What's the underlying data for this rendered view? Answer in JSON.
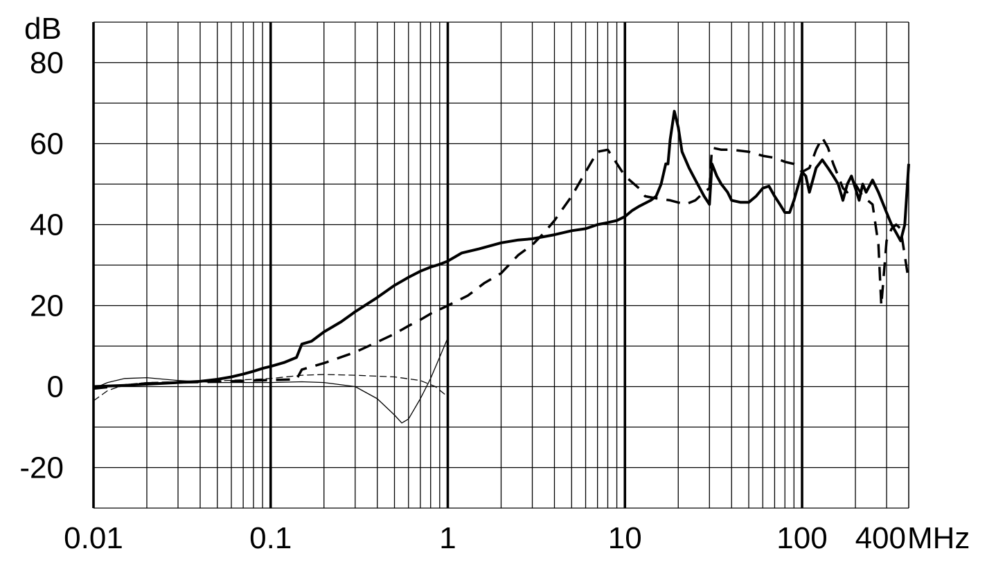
{
  "chart_data": {
    "type": "line",
    "title": "",
    "xscale": "log",
    "xlim": [
      0.01,
      400
    ],
    "ylim": [
      -30,
      90
    ],
    "grid": true,
    "xlabel_unit": "MHz",
    "ylabel_unit": "dB",
    "x_ticks": [
      {
        "value": 0.01,
        "label": "0.01"
      },
      {
        "value": 0.1,
        "label": "0.1"
      },
      {
        "value": 1,
        "label": "1"
      },
      {
        "value": 10,
        "label": "10"
      },
      {
        "value": 100,
        "label": "100"
      },
      {
        "value": 400,
        "label": "400"
      }
    ],
    "y_ticks": [
      {
        "value": 80,
        "label": "80"
      },
      {
        "value": 60,
        "label": "60"
      },
      {
        "value": 40,
        "label": "40"
      },
      {
        "value": 20,
        "label": "20"
      },
      {
        "value": 0,
        "label": "0"
      },
      {
        "value": -20,
        "label": "-20"
      }
    ],
    "series": [
      {
        "style": "solid-thick",
        "points": [
          [
            0.01,
            0
          ],
          [
            0.015,
            0.3
          ],
          [
            0.02,
            0.6
          ],
          [
            0.03,
            1
          ],
          [
            0.04,
            1.3
          ],
          [
            0.05,
            1.8
          ],
          [
            0.06,
            2.4
          ],
          [
            0.07,
            3.1
          ],
          [
            0.08,
            3.8
          ],
          [
            0.09,
            4.5
          ],
          [
            0.1,
            5
          ],
          [
            0.12,
            6
          ],
          [
            0.14,
            7.2
          ],
          [
            0.15,
            10.5
          ],
          [
            0.17,
            11.2
          ],
          [
            0.2,
            13.5
          ],
          [
            0.25,
            16
          ],
          [
            0.3,
            18.5
          ],
          [
            0.4,
            22
          ],
          [
            0.5,
            25
          ],
          [
            0.6,
            27
          ],
          [
            0.7,
            28.5
          ],
          [
            0.8,
            29.5
          ],
          [
            0.9,
            30.2
          ],
          [
            1,
            31
          ],
          [
            1.2,
            33
          ],
          [
            1.5,
            34
          ],
          [
            2,
            35.5
          ],
          [
            2.5,
            36.2
          ],
          [
            3,
            36.5
          ],
          [
            4,
            37.5
          ],
          [
            5,
            38.5
          ],
          [
            6,
            39
          ],
          [
            7,
            40
          ],
          [
            8,
            40.5
          ],
          [
            9,
            41
          ],
          [
            10,
            42
          ],
          [
            11,
            43.5
          ],
          [
            12,
            44.5
          ],
          [
            14,
            46
          ],
          [
            15,
            47
          ],
          [
            16,
            50
          ],
          [
            17,
            55
          ],
          [
            17.5,
            55
          ],
          [
            18,
            61
          ],
          [
            19,
            68
          ],
          [
            20,
            64
          ],
          [
            21,
            58
          ],
          [
            23,
            54
          ],
          [
            25,
            51
          ],
          [
            28,
            47
          ],
          [
            30,
            45
          ],
          [
            31,
            55
          ],
          [
            33,
            52
          ],
          [
            35,
            50
          ],
          [
            38,
            48
          ],
          [
            40,
            46
          ],
          [
            45,
            45.5
          ],
          [
            50,
            45.5
          ],
          [
            55,
            47
          ],
          [
            60,
            49
          ],
          [
            65,
            49.5
          ],
          [
            70,
            47
          ],
          [
            75,
            45
          ],
          [
            80,
            43
          ],
          [
            85,
            43
          ],
          [
            90,
            46
          ],
          [
            100,
            53
          ],
          [
            105,
            52
          ],
          [
            110,
            48
          ],
          [
            115,
            51
          ],
          [
            120,
            54
          ],
          [
            130,
            56
          ],
          [
            140,
            54
          ],
          [
            150,
            52
          ],
          [
            160,
            50
          ],
          [
            165,
            48
          ],
          [
            170,
            46
          ],
          [
            180,
            50
          ],
          [
            190,
            52
          ],
          [
            200,
            49
          ],
          [
            210,
            46
          ],
          [
            220,
            50
          ],
          [
            230,
            48
          ],
          [
            250,
            51
          ],
          [
            270,
            48
          ],
          [
            300,
            43
          ],
          [
            320,
            40
          ],
          [
            340,
            38
          ],
          [
            360,
            36
          ],
          [
            380,
            40
          ],
          [
            400,
            55
          ]
        ]
      },
      {
        "style": "dashed-thick",
        "points": [
          [
            0.01,
            -0.5
          ],
          [
            0.015,
            0.3
          ],
          [
            0.02,
            0.8
          ],
          [
            0.03,
            1
          ],
          [
            0.05,
            1.2
          ],
          [
            0.08,
            1.5
          ],
          [
            0.1,
            1.6
          ],
          [
            0.14,
            1.8
          ],
          [
            0.15,
            4.2
          ],
          [
            0.2,
            5.8
          ],
          [
            0.3,
            8.5
          ],
          [
            0.4,
            11
          ],
          [
            0.5,
            13
          ],
          [
            0.6,
            15
          ],
          [
            0.7,
            16.5
          ],
          [
            0.8,
            18
          ],
          [
            1,
            20
          ],
          [
            1.3,
            22.5
          ],
          [
            1.6,
            25.5
          ],
          [
            2,
            28
          ],
          [
            2.5,
            32.5
          ],
          [
            3,
            35
          ],
          [
            3.5,
            38
          ],
          [
            4,
            41
          ],
          [
            5,
            47
          ],
          [
            6,
            53
          ],
          [
            7,
            58
          ],
          [
            8,
            58.5
          ],
          [
            10,
            52
          ],
          [
            12,
            49
          ],
          [
            13,
            47
          ],
          [
            15,
            46.5
          ],
          [
            18,
            46
          ],
          [
            22,
            45
          ],
          [
            25,
            46
          ],
          [
            28,
            48
          ],
          [
            30,
            49
          ],
          [
            31,
            59
          ],
          [
            35,
            58.5
          ],
          [
            40,
            58.5
          ],
          [
            50,
            58
          ],
          [
            60,
            57
          ],
          [
            70,
            56.5
          ],
          [
            80,
            55.5
          ],
          [
            90,
            55
          ],
          [
            100,
            53
          ],
          [
            110,
            54
          ],
          [
            120,
            58.5
          ],
          [
            130,
            61.5
          ],
          [
            140,
            59
          ],
          [
            150,
            55
          ],
          [
            160,
            52
          ],
          [
            170,
            49
          ],
          [
            180,
            48
          ],
          [
            200,
            50
          ],
          [
            220,
            47
          ],
          [
            250,
            45
          ],
          [
            270,
            35
          ],
          [
            280,
            20
          ],
          [
            300,
            36
          ],
          [
            320,
            39
          ],
          [
            340,
            40
          ],
          [
            360,
            39
          ],
          [
            400,
            26
          ]
        ]
      },
      {
        "style": "solid-thin",
        "points": [
          [
            0.01,
            -0.5
          ],
          [
            0.012,
            1
          ],
          [
            0.015,
            2
          ],
          [
            0.02,
            2.2
          ],
          [
            0.03,
            1.5
          ],
          [
            0.05,
            1
          ],
          [
            0.08,
            1
          ],
          [
            0.1,
            1
          ],
          [
            0.15,
            1.2
          ],
          [
            0.2,
            1
          ],
          [
            0.3,
            0
          ],
          [
            0.4,
            -3
          ],
          [
            0.5,
            -7
          ],
          [
            0.55,
            -9
          ],
          [
            0.6,
            -8
          ],
          [
            0.7,
            -3
          ],
          [
            0.8,
            2
          ],
          [
            1,
            12
          ]
        ]
      },
      {
        "style": "dashed-thin",
        "points": [
          [
            0.01,
            -3.5
          ],
          [
            0.012,
            -1
          ],
          [
            0.015,
            0.5
          ],
          [
            0.02,
            1
          ],
          [
            0.03,
            1.2
          ],
          [
            0.05,
            1.4
          ],
          [
            0.08,
            1.8
          ],
          [
            0.1,
            2
          ],
          [
            0.15,
            2.8
          ],
          [
            0.2,
            3
          ],
          [
            0.3,
            2.8
          ],
          [
            0.5,
            2.4
          ],
          [
            0.7,
            1.5
          ],
          [
            0.85,
            0
          ],
          [
            1,
            -2.5
          ]
        ]
      }
    ]
  }
}
